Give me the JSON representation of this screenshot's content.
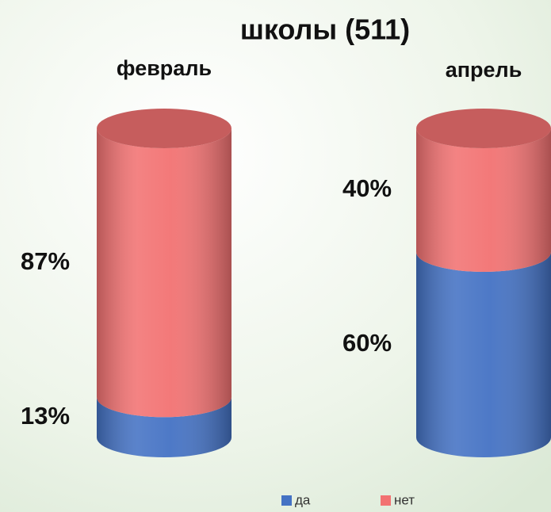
{
  "chart_data": {
    "type": "stacked-cylinder",
    "title": "школы (511)",
    "categories": [
      "февраль",
      "апрель"
    ],
    "series": [
      {
        "name": "да",
        "color": "#4472c4",
        "values": [
          13,
          60
        ],
        "value_labels": [
          "13%",
          "60%"
        ]
      },
      {
        "name": "нет",
        "color": "#f27272",
        "values": [
          87,
          40
        ],
        "value_labels": [
          "87%",
          "40%"
        ]
      }
    ],
    "legend": "bottom"
  }
}
